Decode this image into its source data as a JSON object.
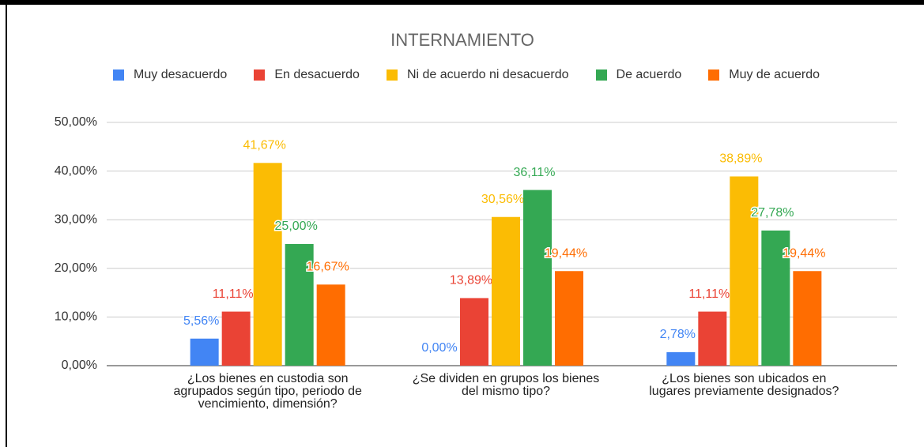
{
  "chart_data": {
    "type": "bar",
    "title": "INTERNAMIENTO",
    "categories": [
      "¿Los bienes en custodia son agrupados según tipo, periodo de vencimiento, dimensión?",
      "¿Se dividen en grupos los bienes del mismo tipo?",
      "¿Los bienes son ubicados en lugares previamente designados?"
    ],
    "series": [
      {
        "name": "Muy desacuerdo",
        "color": "#4285f4",
        "values": [
          5.56,
          0,
          2.78
        ],
        "value_labels": [
          "5,56%",
          "0,00%",
          "2,78%"
        ]
      },
      {
        "name": "En desacuerdo",
        "color": "#ea4335",
        "values": [
          11.11,
          13.89,
          11.11
        ],
        "value_labels": [
          "11,11%",
          "13,89%",
          "11,11%"
        ]
      },
      {
        "name": "Ni de acuerdo ni desacuerdo",
        "color": "#fbbc04",
        "values": [
          41.67,
          30.56,
          38.89
        ],
        "value_labels": [
          "41,67%",
          "30,56%",
          "38,89%"
        ]
      },
      {
        "name": "De acuerdo",
        "color": "#34a853",
        "values": [
          25,
          36.11,
          27.78
        ],
        "value_labels": [
          "25,00%",
          "36,11%",
          "27,78%"
        ]
      },
      {
        "name": "Muy de acuerdo",
        "color": "#ff6d01",
        "values": [
          16.67,
          19.44,
          19.44
        ],
        "value_labels": [
          "16,67%",
          "19,44%",
          "19,44%"
        ]
      }
    ],
    "ylim": [
      0,
      50
    ],
    "yticks": [
      {
        "value": 0,
        "label": "0,00%"
      },
      {
        "value": 10,
        "label": "10,00%"
      },
      {
        "value": 20,
        "label": "20,00%"
      },
      {
        "value": 30,
        "label": "30,00%"
      },
      {
        "value": 40,
        "label": "40,00%"
      },
      {
        "value": 50,
        "label": "50,00%"
      }
    ],
    "grid": true
  }
}
